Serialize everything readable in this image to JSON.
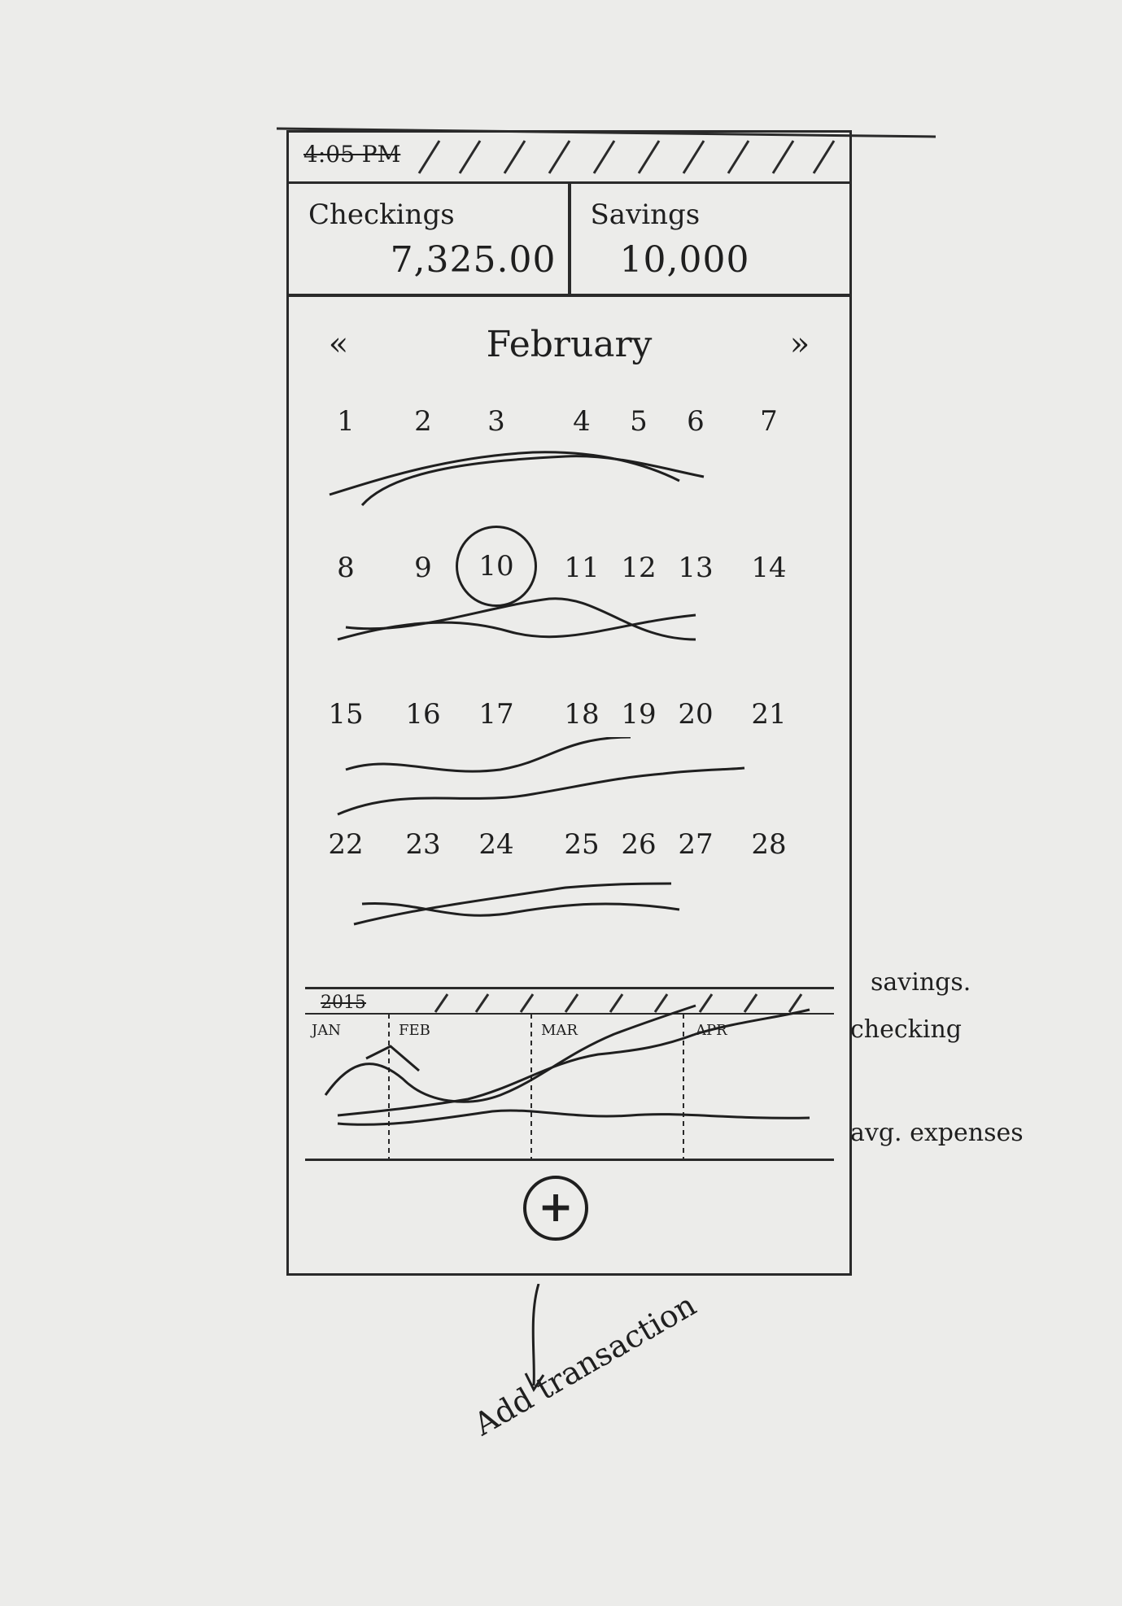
{
  "status_bar": {
    "time": "4:05 PM"
  },
  "accounts": [
    {
      "label": "Checkings",
      "value": "7,325.00"
    },
    {
      "label": "Savings",
      "value": "10,000"
    }
  ],
  "calendar": {
    "month": "February",
    "prev_label": "«",
    "next_label": "»",
    "selected_day": "10",
    "weeks": [
      [
        "1",
        "2",
        "3",
        "4",
        "5",
        "6",
        "7"
      ],
      [
        "8",
        "9",
        "10",
        "11",
        "12",
        "13",
        "14"
      ],
      [
        "15",
        "16",
        "17",
        "18",
        "19",
        "20",
        "21"
      ],
      [
        "22",
        "23",
        "24",
        "25",
        "26",
        "27",
        "28"
      ]
    ]
  },
  "timeline": {
    "year": "2015",
    "months": [
      "JAN",
      "FEB",
      "MAR",
      "APR"
    ]
  },
  "add_button": {
    "icon": "plus-icon",
    "label": "+"
  },
  "annotations": {
    "savings": "savings.",
    "checking": "checking",
    "expenses": "avg. expenses",
    "add": "Add transaction"
  }
}
